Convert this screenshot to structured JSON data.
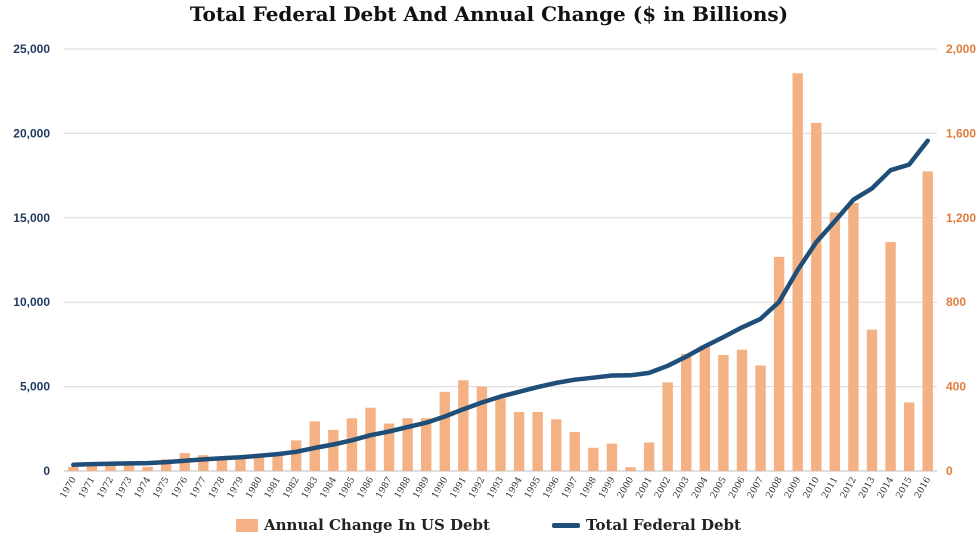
{
  "chart_data": {
    "type": "bar",
    "title": "Total Federal Debt And Annual Change ($ in Billions)",
    "categories": [
      "1970",
      "1971",
      "1972",
      "1973",
      "1974",
      "1975",
      "1976",
      "1977",
      "1978",
      "1979",
      "1980",
      "1981",
      "1982",
      "1983",
      "1984",
      "1985",
      "1986",
      "1987",
      "1988",
      "1989",
      "1990",
      "1991",
      "1992",
      "1993",
      "1994",
      "1995",
      "1996",
      "1997",
      "1998",
      "1999",
      "2000",
      "2001",
      "2002",
      "2003",
      "2004",
      "2005",
      "2006",
      "2007",
      "2008",
      "2009",
      "2010",
      "2011",
      "2012",
      "2013",
      "2014",
      "2015",
      "2016"
    ],
    "series": [
      {
        "name": "Annual Change In US Debt",
        "type": "bar",
        "axis": "right",
        "color": "#F4B183",
        "values": [
          20,
          25,
          30,
          30,
          20,
          55,
          85,
          75,
          65,
          70,
          80,
          80,
          145,
          235,
          195,
          250,
          300,
          225,
          250,
          250,
          375,
          430,
          400,
          345,
          280,
          280,
          245,
          185,
          110,
          130,
          18,
          135,
          420,
          555,
          595,
          550,
          575,
          500,
          1015,
          1885,
          1650,
          1225,
          1270,
          670,
          1085,
          325,
          1420
        ]
      },
      {
        "name": "Total Federal Debt",
        "type": "line",
        "axis": "left",
        "color": "#1F4E79",
        "values": [
          370,
          410,
          430,
          450,
          470,
          530,
          610,
          690,
          760,
          820,
          900,
          1000,
          1140,
          1370,
          1570,
          1820,
          2120,
          2340,
          2600,
          2860,
          3230,
          3660,
          4060,
          4410,
          4690,
          4970,
          5220,
          5410,
          5530,
          5660,
          5670,
          5810,
          6230,
          6780,
          7380,
          7930,
          8510,
          9010,
          10020,
          11910,
          13560,
          14790,
          16070,
          16740,
          17820,
          18150,
          19570
        ]
      }
    ],
    "ylim_left": [
      0,
      25000
    ],
    "ylim_right": [
      0,
      2000
    ],
    "yticks_left": [
      "0",
      "5,000",
      "10,000",
      "15,000",
      "20,000",
      "25,000"
    ],
    "yticks_right": [
      "0",
      "400",
      "800",
      "1,200",
      "1,600",
      "2,000"
    ],
    "grid": true,
    "legend": "bottom"
  }
}
